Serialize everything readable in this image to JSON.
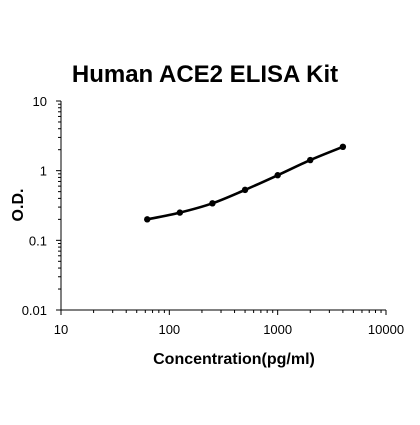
{
  "chart_data": {
    "type": "line",
    "title": "Human ACE2 ELISA Kit",
    "xlabel": "Concentration(pg/ml)",
    "ylabel": "O.D.",
    "x_scale": "log",
    "y_scale": "log",
    "xlim": [
      10,
      10000
    ],
    "ylim": [
      0.01,
      10
    ],
    "x_ticks": [
      "10",
      "100",
      "1000",
      "10000"
    ],
    "y_ticks": [
      "0.01",
      "0.1",
      "1",
      "10"
    ],
    "grid": false,
    "legend": "none",
    "series": [
      {
        "x": [
          62.5,
          125,
          250,
          500,
          1000,
          2000,
          4000
        ],
        "y": [
          0.2,
          0.25,
          0.34,
          0.53,
          0.86,
          1.42,
          2.2
        ],
        "color": "#000000"
      }
    ]
  }
}
